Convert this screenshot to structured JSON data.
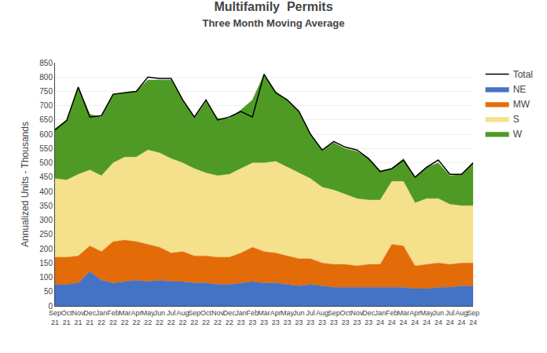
{
  "chart_data": {
    "type": "area",
    "title": "Multifamily  Permits",
    "subtitle": "Three Month Moving Average",
    "y_label": "Annualized Units - Thousands",
    "stacked": true,
    "grid": true,
    "legend": "right",
    "ylim": [
      0,
      850
    ],
    "yticks": [
      0,
      50,
      100,
      150,
      200,
      250,
      300,
      350,
      400,
      450,
      500,
      550,
      600,
      650,
      700,
      750,
      800,
      850
    ],
    "categories": [
      "Sep\n21",
      "Oct\n21",
      "Nov\n21",
      "Dec\n21",
      "Jan\n22",
      "Feb\n22",
      "Mar\n22",
      "Apr\n22",
      "May\n22",
      "Jun\n22",
      "Jul\n22",
      "Aug\n22",
      "Sep\n22",
      "Oct\n22",
      "Nov\n22",
      "Dec\n22",
      "Jan\n23",
      "Feb\n23",
      "Mar\n23",
      "Apr\n23",
      "May\n23",
      "Jun\n23",
      "Jul\n23",
      "Aug\n23",
      "Sep\n23",
      "Oct\n23",
      "Nov\n23",
      "Dec\n23",
      "Jan\n24",
      "Feb\n24",
      "Mar\n24",
      "Apr\n24",
      "May\n24",
      "Jun\n24",
      "Jul\n24",
      "Aug\n24",
      "Sep\n24"
    ],
    "series": [
      {
        "name": "NE",
        "type": "area",
        "color": "#4472C4",
        "values": [
          75,
          75,
          80,
          120,
          90,
          80,
          85,
          90,
          85,
          90,
          85,
          85,
          80,
          80,
          75,
          75,
          80,
          85,
          80,
          80,
          75,
          70,
          75,
          70,
          65,
          65,
          65,
          65,
          65,
          65,
          65,
          60,
          60,
          65,
          65,
          70,
          70
        ]
      },
      {
        "name": "MW",
        "type": "area",
        "color": "#E36C09",
        "values": [
          95,
          95,
          95,
          90,
          100,
          145,
          145,
          135,
          130,
          115,
          100,
          105,
          95,
          95,
          95,
          95,
          105,
          120,
          110,
          105,
          100,
          95,
          90,
          80,
          80,
          80,
          75,
          80,
          80,
          150,
          145,
          80,
          85,
          85,
          80,
          80,
          80
        ]
      },
      {
        "name": "S",
        "type": "area",
        "color": "#F5E08C",
        "values": [
          275,
          270,
          285,
          265,
          265,
          275,
          290,
          295,
          330,
          330,
          330,
          310,
          305,
          290,
          285,
          290,
          295,
          295,
          310,
          320,
          310,
          300,
          280,
          265,
          260,
          245,
          235,
          225,
          225,
          220,
          225,
          220,
          230,
          225,
          210,
          200,
          200
        ]
      },
      {
        "name": "W",
        "type": "area",
        "color": "#4E9A25",
        "values": [
          175,
          210,
          305,
          195,
          205,
          240,
          225,
          230,
          245,
          255,
          275,
          220,
          175,
          250,
          200,
          195,
          205,
          220,
          310,
          245,
          235,
          215,
          155,
          130,
          165,
          160,
          165,
          145,
          100,
          45,
          80,
          90,
          110,
          125,
          100,
          110,
          150
        ]
      },
      {
        "name": "Total",
        "type": "line",
        "color": "#000000",
        "values": [
          615,
          648,
          765,
          660,
          665,
          740,
          745,
          750,
          800,
          795,
          795,
          720,
          660,
          720,
          650,
          660,
          680,
          660,
          810,
          745,
          720,
          680,
          600,
          545,
          575,
          555,
          545,
          515,
          470,
          480,
          510,
          450,
          485,
          510,
          460,
          460,
          500
        ]
      }
    ]
  }
}
